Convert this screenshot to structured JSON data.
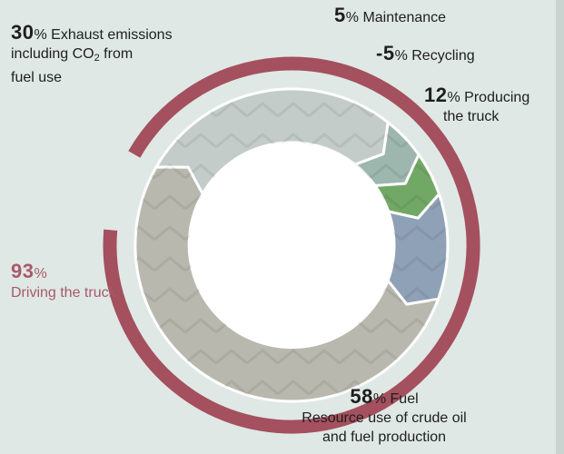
{
  "chart_data": {
    "type": "pie",
    "total": {
      "value": "93",
      "unit": "%",
      "label": "Driving the truck",
      "color": "#a4505e"
    },
    "segments": [
      {
        "id": "exhaust",
        "value": 30,
        "value_text": "30",
        "unit": "%",
        "label_lines": [
          "Exhaust emissions",
          "including CO",
          "2",
          " from",
          "fuel use"
        ],
        "color": "#c3ccc9"
      },
      {
        "id": "maintenance",
        "value": 5,
        "value_text": "5",
        "unit": "%",
        "label_lines": [
          "Maintenance"
        ],
        "color": "#9db6ae"
      },
      {
        "id": "recycling",
        "value": -5,
        "value_text": "-5",
        "unit": "%",
        "label_lines": [
          "Recycling"
        ],
        "color": "#72a866"
      },
      {
        "id": "producing",
        "value": 12,
        "value_text": "12",
        "unit": "%",
        "label_lines": [
          "Producing",
          "the truck"
        ],
        "color": "#8fa1b6"
      },
      {
        "id": "fuel",
        "value": 58,
        "value_text": "58",
        "unit": "%",
        "label_lines": [
          "Fuel",
          "Resource use of crude oil",
          "and fuel production"
        ],
        "color": "#b9b8ae"
      }
    ]
  }
}
